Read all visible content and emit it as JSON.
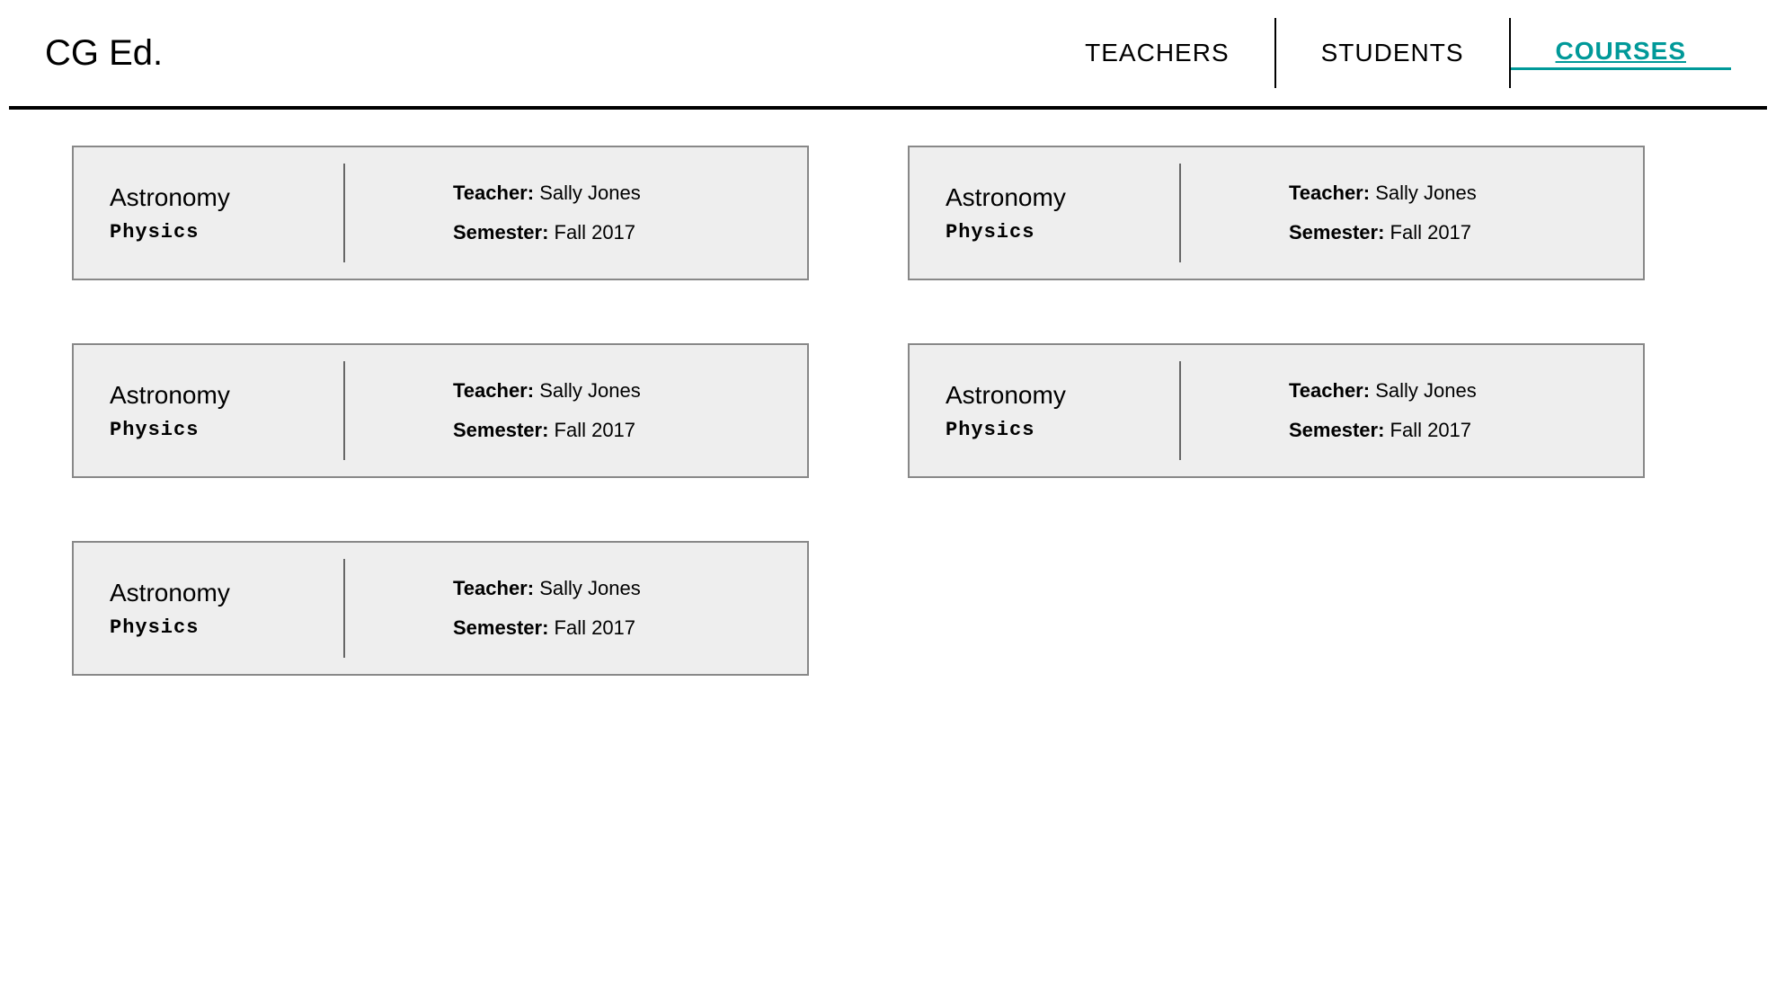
{
  "header": {
    "logo": "CG Ed.",
    "nav": {
      "teachers": "TEACHERS",
      "students": "STUDENTS",
      "courses": "COURSES"
    }
  },
  "labels": {
    "teacher": "Teacher:",
    "semester": "Semester:"
  },
  "courses": [
    {
      "title": "Astronomy",
      "subject": "Physics",
      "teacher": "Sally Jones",
      "semester": "Fall 2017"
    },
    {
      "title": "Astronomy",
      "subject": "Physics",
      "teacher": "Sally Jones",
      "semester": "Fall 2017"
    },
    {
      "title": "Astronomy",
      "subject": "Physics",
      "teacher": "Sally Jones",
      "semester": "Fall 2017"
    },
    {
      "title": "Astronomy",
      "subject": "Physics",
      "teacher": "Sally Jones",
      "semester": "Fall 2017"
    },
    {
      "title": "Astronomy",
      "subject": "Physics",
      "teacher": "Sally Jones",
      "semester": "Fall 2017"
    }
  ],
  "colors": {
    "background": "#ffffff",
    "card_background": "#eeeeee",
    "card_border": "#888888",
    "text": "#000000",
    "active_nav": "#009999",
    "divider": "#666666"
  }
}
